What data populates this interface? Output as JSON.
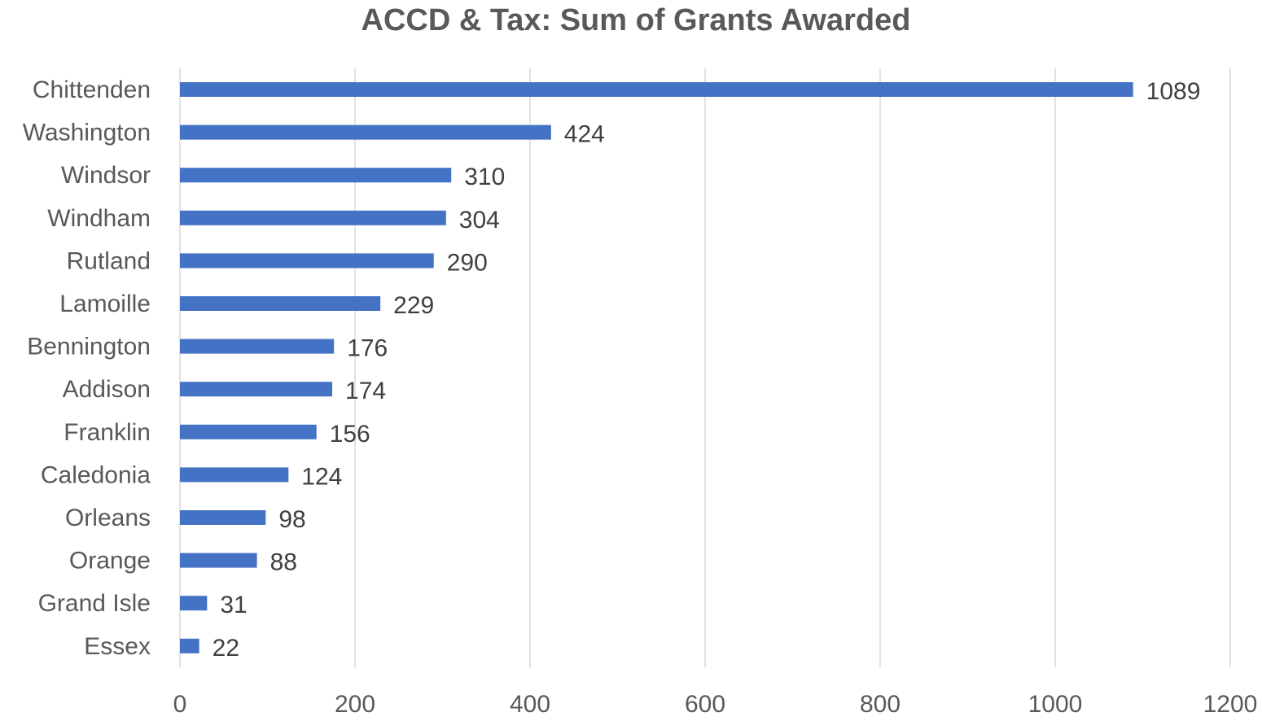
{
  "chart_data": {
    "type": "bar",
    "orientation": "horizontal",
    "title": "ACCD & Tax: Sum of Grants Awarded",
    "xlabel": "",
    "ylabel": "",
    "categories": [
      "Chittenden",
      "Washington",
      "Windsor",
      "Windham",
      "Rutland",
      "Lamoille",
      "Bennington",
      "Addison",
      "Franklin",
      "Caledonia",
      "Orleans",
      "Orange",
      "Grand Isle",
      "Essex"
    ],
    "values": [
      1089,
      424,
      310,
      304,
      290,
      229,
      176,
      174,
      156,
      124,
      98,
      88,
      31,
      22
    ],
    "xlim": [
      0,
      1200
    ],
    "xticks": [
      0,
      200,
      400,
      600,
      800,
      1000,
      1200
    ],
    "grid": "vertical",
    "legend": "none",
    "data_labels": true,
    "colors": {
      "bar": "#4472C4",
      "gridline": "#D9D9D9",
      "text": "#595959"
    }
  }
}
